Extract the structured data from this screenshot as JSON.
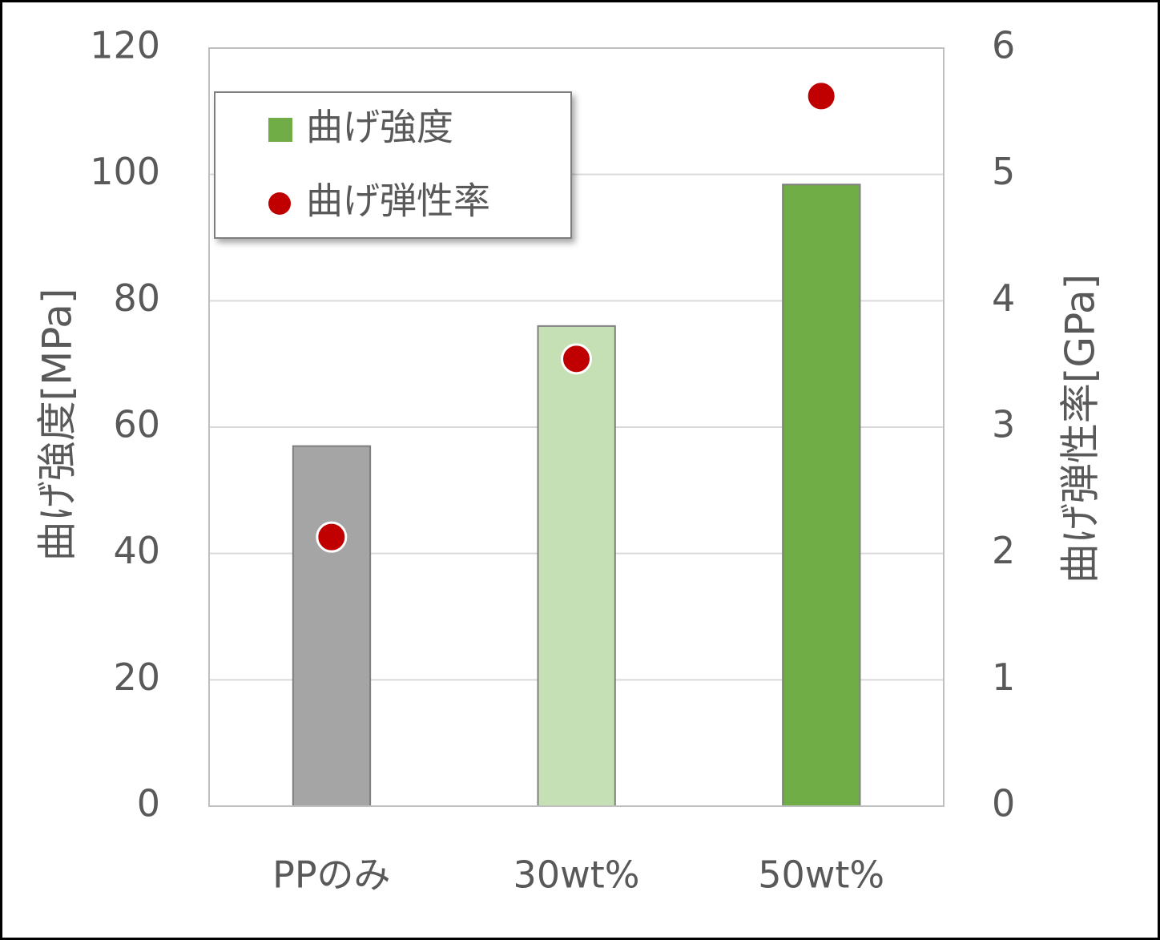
{
  "chart_data": {
    "type": "bar",
    "categories": [
      "PPのみ",
      "30wt%",
      "50wt%"
    ],
    "series": [
      {
        "name": "曲げ強度",
        "color": "#70ad47",
        "colors": [
          "#a5a5a5",
          "#c5e0b4",
          "#70ad47"
        ],
        "values": [
          57,
          76,
          98.4
        ]
      },
      {
        "name": "曲げ弾性率",
        "type": "scatter",
        "axis": "y2",
        "color": "#c00000",
        "values": [
          2.13,
          3.54,
          5.62
        ]
      }
    ],
    "ylabel": "曲げ強度[MPa]",
    "y2label": "曲げ弾性率[GPa]",
    "ylim": [
      0,
      120
    ],
    "yticks": [
      0,
      20,
      40,
      60,
      80,
      100,
      120
    ],
    "y2lim": [
      0,
      6
    ],
    "y2ticks": [
      0,
      1,
      2,
      3,
      4,
      5,
      6
    ],
    "grid": true,
    "legend": "upper left"
  }
}
